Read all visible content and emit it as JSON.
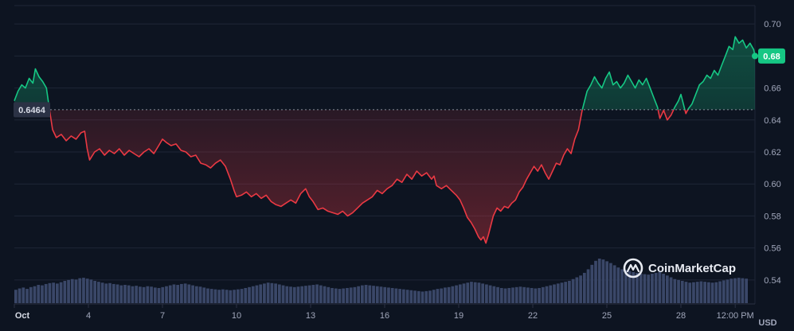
{
  "chart_data": {
    "type": "line",
    "title": "",
    "xlabel": "",
    "ylabel": "",
    "unit_label": "USD",
    "ylim": [
      0.525,
      0.715
    ],
    "y_ticks": [
      0.54,
      0.56,
      0.58,
      0.6,
      0.62,
      0.64,
      0.66,
      0.68,
      0.7
    ],
    "y_tick_labels": [
      "0.54",
      "0.56",
      "0.58",
      "0.60",
      "0.62",
      "0.64",
      "0.66",
      "0.68",
      "0.70"
    ],
    "x_ticks": [
      {
        "label": "Oct",
        "x": 1
      },
      {
        "label": "4",
        "x": 4
      },
      {
        "label": "7",
        "x": 7
      },
      {
        "label": "10",
        "x": 10
      },
      {
        "label": "13",
        "x": 13
      },
      {
        "label": "16",
        "x": 16
      },
      {
        "label": "19",
        "x": 19
      },
      {
        "label": "22",
        "x": 22
      },
      {
        "label": "25",
        "x": 25
      },
      {
        "label": "28",
        "x": 28
      },
      {
        "label": "12:00 PM",
        "x": 30.2
      }
    ],
    "xlim": [
      1,
      31
    ],
    "reference_value": 0.6464,
    "reference_label": "0.6464",
    "current_value": 0.68,
    "current_label": "0.68",
    "grid": true,
    "colors": {
      "up": "#16c784",
      "down": "#ea3943",
      "volume": "#3a4768",
      "badge": "#16c784",
      "reference_badge": "#2b3245"
    },
    "series": [
      {
        "points": [
          [
            1.0,
            0.652
          ],
          [
            1.15,
            0.658
          ],
          [
            1.3,
            0.662
          ],
          [
            1.45,
            0.66
          ],
          [
            1.6,
            0.666
          ],
          [
            1.75,
            0.663
          ],
          [
            1.85,
            0.672
          ],
          [
            2.0,
            0.667
          ],
          [
            2.15,
            0.664
          ],
          [
            2.3,
            0.66
          ],
          [
            2.42,
            0.647
          ],
          [
            2.55,
            0.634
          ],
          [
            2.7,
            0.629
          ],
          [
            2.9,
            0.631
          ],
          [
            3.1,
            0.627
          ],
          [
            3.3,
            0.63
          ],
          [
            3.5,
            0.628
          ],
          [
            3.7,
            0.632
          ],
          [
            3.85,
            0.633
          ],
          [
            3.95,
            0.622
          ],
          [
            4.05,
            0.615
          ],
          [
            4.25,
            0.62
          ],
          [
            4.45,
            0.622
          ],
          [
            4.65,
            0.618
          ],
          [
            4.85,
            0.621
          ],
          [
            5.05,
            0.619
          ],
          [
            5.25,
            0.622
          ],
          [
            5.45,
            0.618
          ],
          [
            5.65,
            0.621
          ],
          [
            5.85,
            0.619
          ],
          [
            6.05,
            0.617
          ],
          [
            6.25,
            0.62
          ],
          [
            6.45,
            0.622
          ],
          [
            6.65,
            0.619
          ],
          [
            6.85,
            0.624
          ],
          [
            7.0,
            0.628
          ],
          [
            7.15,
            0.626
          ],
          [
            7.35,
            0.624
          ],
          [
            7.55,
            0.625
          ],
          [
            7.75,
            0.621
          ],
          [
            7.95,
            0.62
          ],
          [
            8.15,
            0.617
          ],
          [
            8.35,
            0.618
          ],
          [
            8.55,
            0.613
          ],
          [
            8.75,
            0.612
          ],
          [
            8.95,
            0.61
          ],
          [
            9.15,
            0.613
          ],
          [
            9.35,
            0.615
          ],
          [
            9.55,
            0.611
          ],
          [
            9.75,
            0.603
          ],
          [
            9.9,
            0.596
          ],
          [
            10.0,
            0.592
          ],
          [
            10.2,
            0.593
          ],
          [
            10.4,
            0.595
          ],
          [
            10.6,
            0.592
          ],
          [
            10.8,
            0.594
          ],
          [
            11.0,
            0.591
          ],
          [
            11.2,
            0.593
          ],
          [
            11.4,
            0.589
          ],
          [
            11.6,
            0.587
          ],
          [
            11.8,
            0.586
          ],
          [
            12.0,
            0.588
          ],
          [
            12.2,
            0.59
          ],
          [
            12.4,
            0.588
          ],
          [
            12.6,
            0.594
          ],
          [
            12.8,
            0.597
          ],
          [
            12.95,
            0.592
          ],
          [
            13.1,
            0.589
          ],
          [
            13.3,
            0.584
          ],
          [
            13.5,
            0.585
          ],
          [
            13.7,
            0.583
          ],
          [
            13.9,
            0.582
          ],
          [
            14.1,
            0.581
          ],
          [
            14.3,
            0.583
          ],
          [
            14.5,
            0.58
          ],
          [
            14.7,
            0.582
          ],
          [
            14.9,
            0.585
          ],
          [
            15.1,
            0.588
          ],
          [
            15.3,
            0.59
          ],
          [
            15.5,
            0.592
          ],
          [
            15.7,
            0.596
          ],
          [
            15.9,
            0.594
          ],
          [
            16.1,
            0.597
          ],
          [
            16.3,
            0.599
          ],
          [
            16.5,
            0.603
          ],
          [
            16.7,
            0.601
          ],
          [
            16.9,
            0.606
          ],
          [
            17.1,
            0.603
          ],
          [
            17.3,
            0.608
          ],
          [
            17.5,
            0.605
          ],
          [
            17.7,
            0.607
          ],
          [
            17.9,
            0.603
          ],
          [
            18.0,
            0.605
          ],
          [
            18.1,
            0.599
          ],
          [
            18.3,
            0.597
          ],
          [
            18.5,
            0.599
          ],
          [
            18.7,
            0.596
          ],
          [
            18.9,
            0.593
          ],
          [
            19.05,
            0.59
          ],
          [
            19.2,
            0.585
          ],
          [
            19.35,
            0.579
          ],
          [
            19.5,
            0.576
          ],
          [
            19.65,
            0.572
          ],
          [
            19.8,
            0.567
          ],
          [
            19.9,
            0.565
          ],
          [
            20.0,
            0.567
          ],
          [
            20.1,
            0.563
          ],
          [
            20.2,
            0.568
          ],
          [
            20.3,
            0.574
          ],
          [
            20.4,
            0.58
          ],
          [
            20.55,
            0.585
          ],
          [
            20.7,
            0.583
          ],
          [
            20.85,
            0.586
          ],
          [
            21.0,
            0.585
          ],
          [
            21.15,
            0.588
          ],
          [
            21.3,
            0.59
          ],
          [
            21.45,
            0.595
          ],
          [
            21.6,
            0.598
          ],
          [
            21.75,
            0.603
          ],
          [
            21.9,
            0.607
          ],
          [
            22.05,
            0.611
          ],
          [
            22.2,
            0.608
          ],
          [
            22.35,
            0.612
          ],
          [
            22.5,
            0.607
          ],
          [
            22.65,
            0.603
          ],
          [
            22.8,
            0.608
          ],
          [
            22.95,
            0.613
          ],
          [
            23.1,
            0.612
          ],
          [
            23.25,
            0.618
          ],
          [
            23.4,
            0.622
          ],
          [
            23.55,
            0.619
          ],
          [
            23.7,
            0.628
          ],
          [
            23.85,
            0.634
          ],
          [
            24.0,
            0.646
          ],
          [
            24.1,
            0.652
          ],
          [
            24.2,
            0.658
          ],
          [
            24.35,
            0.662
          ],
          [
            24.5,
            0.667
          ],
          [
            24.65,
            0.663
          ],
          [
            24.8,
            0.66
          ],
          [
            24.95,
            0.666
          ],
          [
            25.1,
            0.67
          ],
          [
            25.25,
            0.662
          ],
          [
            25.4,
            0.664
          ],
          [
            25.55,
            0.66
          ],
          [
            25.7,
            0.663
          ],
          [
            25.85,
            0.668
          ],
          [
            26.0,
            0.664
          ],
          [
            26.15,
            0.66
          ],
          [
            26.3,
            0.665
          ],
          [
            26.45,
            0.662
          ],
          [
            26.6,
            0.666
          ],
          [
            26.75,
            0.66
          ],
          [
            26.9,
            0.654
          ],
          [
            27.05,
            0.648
          ],
          [
            27.15,
            0.641
          ],
          [
            27.3,
            0.646
          ],
          [
            27.45,
            0.64
          ],
          [
            27.6,
            0.643
          ],
          [
            27.75,
            0.648
          ],
          [
            27.9,
            0.652
          ],
          [
            28.0,
            0.656
          ],
          [
            28.1,
            0.65
          ],
          [
            28.2,
            0.644
          ],
          [
            28.3,
            0.647
          ],
          [
            28.45,
            0.65
          ],
          [
            28.6,
            0.656
          ],
          [
            28.75,
            0.662
          ],
          [
            28.9,
            0.664
          ],
          [
            29.05,
            0.668
          ],
          [
            29.2,
            0.666
          ],
          [
            29.35,
            0.671
          ],
          [
            29.5,
            0.668
          ],
          [
            29.65,
            0.674
          ],
          [
            29.8,
            0.68
          ],
          [
            29.95,
            0.686
          ],
          [
            30.1,
            0.684
          ],
          [
            30.2,
            0.692
          ],
          [
            30.35,
            0.688
          ],
          [
            30.5,
            0.69
          ],
          [
            30.65,
            0.685
          ],
          [
            30.8,
            0.688
          ],
          [
            30.95,
            0.684
          ],
          [
            31.0,
            0.68
          ]
        ]
      }
    ],
    "volume": [
      0.3,
      0.33,
      0.35,
      0.32,
      0.36,
      0.38,
      0.41,
      0.4,
      0.43,
      0.45,
      0.46,
      0.44,
      0.47,
      0.5,
      0.52,
      0.54,
      0.53,
      0.56,
      0.57,
      0.55,
      0.53,
      0.5,
      0.48,
      0.46,
      0.44,
      0.45,
      0.43,
      0.42,
      0.4,
      0.41,
      0.4,
      0.38,
      0.39,
      0.37,
      0.36,
      0.38,
      0.37,
      0.35,
      0.34,
      0.36,
      0.38,
      0.4,
      0.42,
      0.41,
      0.43,
      0.44,
      0.42,
      0.4,
      0.38,
      0.37,
      0.35,
      0.33,
      0.32,
      0.31,
      0.3,
      0.31,
      0.3,
      0.29,
      0.3,
      0.31,
      0.32,
      0.34,
      0.36,
      0.38,
      0.4,
      0.42,
      0.44,
      0.46,
      0.45,
      0.44,
      0.42,
      0.4,
      0.38,
      0.37,
      0.36,
      0.37,
      0.38,
      0.39,
      0.4,
      0.41,
      0.42,
      0.4,
      0.38,
      0.36,
      0.34,
      0.33,
      0.32,
      0.33,
      0.34,
      0.35,
      0.36,
      0.38,
      0.4,
      0.41,
      0.4,
      0.39,
      0.38,
      0.37,
      0.36,
      0.35,
      0.34,
      0.33,
      0.32,
      0.31,
      0.3,
      0.29,
      0.28,
      0.27,
      0.26,
      0.27,
      0.28,
      0.3,
      0.32,
      0.33,
      0.35,
      0.36,
      0.38,
      0.4,
      0.42,
      0.44,
      0.46,
      0.48,
      0.47,
      0.46,
      0.44,
      0.42,
      0.4,
      0.38,
      0.36,
      0.34,
      0.33,
      0.34,
      0.35,
      0.36,
      0.37,
      0.36,
      0.35,
      0.34,
      0.33,
      0.34,
      0.36,
      0.38,
      0.4,
      0.42,
      0.44,
      0.46,
      0.48,
      0.5,
      0.54,
      0.58,
      0.62,
      0.68,
      0.76,
      0.86,
      0.95,
      1.0,
      0.98,
      0.94,
      0.9,
      0.85,
      0.8,
      0.76,
      0.74,
      0.72,
      0.7,
      0.68,
      0.66,
      0.65,
      0.64,
      0.66,
      0.68,
      0.7,
      0.66,
      0.62,
      0.58,
      0.54,
      0.52,
      0.5,
      0.48,
      0.46,
      0.47,
      0.48,
      0.49,
      0.48,
      0.47,
      0.46,
      0.47,
      0.49,
      0.51,
      0.53,
      0.55,
      0.56,
      0.57,
      0.56,
      0.55
    ]
  },
  "brand": {
    "name": "CoinMarketCap",
    "icon": "coinmarketcap-logo-icon"
  }
}
